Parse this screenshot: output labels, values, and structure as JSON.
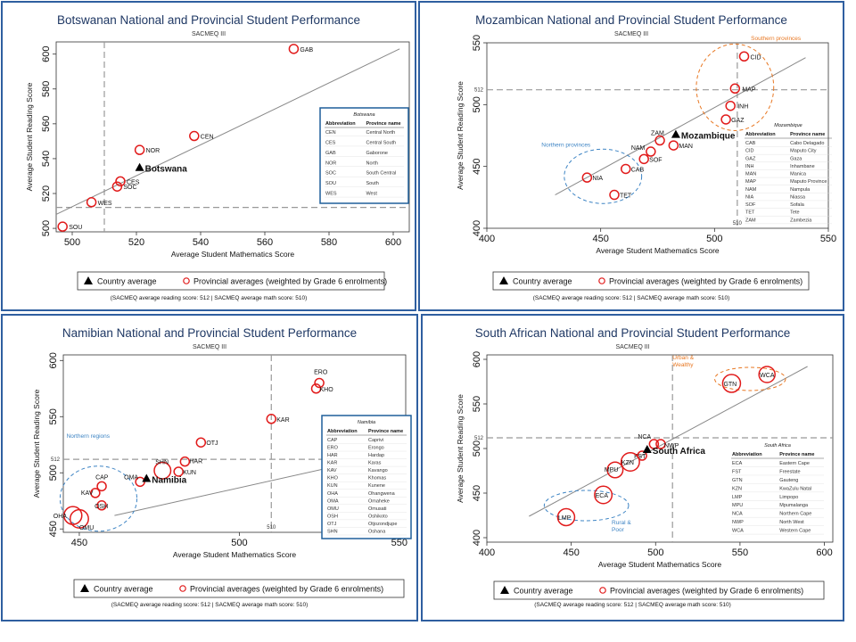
{
  "chart_data": [
    {
      "type": "scatter",
      "title": "Botswanan National and Provincial Student Performance",
      "subtitle": "SACMEQ III",
      "xlabel": "Average Student Mathematics Score",
      "ylabel": "Average Student Reading Score",
      "xlim": [
        495,
        605
      ],
      "ylim": [
        498,
        607
      ],
      "xticks": [
        500,
        520,
        540,
        560,
        580,
        600
      ],
      "yticks": [
        500,
        520,
        540,
        560,
        580,
        600
      ],
      "ref_x": 510,
      "ref_y": 512,
      "ref_x_label": "",
      "ref_y_label": "",
      "country": {
        "label": "Botswana",
        "x": 521,
        "y": 535
      },
      "provinces": [
        {
          "code": "GAB",
          "x": 569,
          "y": 603
        },
        {
          "code": "CEN",
          "x": 538,
          "y": 553
        },
        {
          "code": "NOR",
          "x": 521,
          "y": 545
        },
        {
          "code": "CES",
          "x": 515,
          "y": 527
        },
        {
          "code": "SOC",
          "x": 514,
          "y": 524
        },
        {
          "code": "WES",
          "x": 506,
          "y": 515
        },
        {
          "code": "SOU",
          "x": 497,
          "y": 501
        }
      ],
      "fit_line": [
        [
          495,
          508
        ],
        [
          602,
          603
        ]
      ],
      "legend_table": {
        "title": "Botswana",
        "headers": [
          "Abbreviation",
          "Province name"
        ],
        "rows": [
          [
            "CEN",
            "Central North"
          ],
          [
            "CES",
            "Central South"
          ],
          [
            "GAB",
            "Gaborone"
          ],
          [
            "NOR",
            "North"
          ],
          [
            "SOC",
            "South Central"
          ],
          [
            "SOU",
            "South"
          ],
          [
            "WES",
            "West"
          ]
        ]
      },
      "groups": [],
      "legend": {
        "country": "Country average",
        "provinces": "Provincial averages (weighted by Grade 6 enrolments)"
      },
      "footnote": "(SACMEQ average reading score: 512 | SACMEQ average math score: 510)"
    },
    {
      "type": "scatter",
      "title": "Mozambican National and Provincial Student Performance",
      "subtitle": "SACMEQ III",
      "xlabel": "Average Student Mathematics Score",
      "ylabel": "Average Student Reading Score",
      "xlim": [
        400,
        550
      ],
      "ylim": [
        400,
        550
      ],
      "xticks": [
        400,
        450,
        500,
        550
      ],
      "yticks": [
        400,
        450,
        500,
        550
      ],
      "ref_x": 510,
      "ref_y": 512,
      "ref_x_label": "510",
      "ref_y_label": "512",
      "country": {
        "label": "Mozambique",
        "x": 483,
        "y": 476
      },
      "provinces": [
        {
          "code": "CID",
          "x": 513,
          "y": 539
        },
        {
          "code": "MAP",
          "x": 509,
          "y": 513
        },
        {
          "code": "INH",
          "x": 507,
          "y": 499
        },
        {
          "code": "GAZ",
          "x": 505,
          "y": 488
        },
        {
          "code": "ZAM",
          "x": 476,
          "y": 471
        },
        {
          "code": "MAN",
          "x": 482,
          "y": 467
        },
        {
          "code": "NAM",
          "x": 472,
          "y": 462
        },
        {
          "code": "SOF",
          "x": 469,
          "y": 456
        },
        {
          "code": "CAB",
          "x": 461,
          "y": 448
        },
        {
          "code": "NIA",
          "x": 444,
          "y": 441
        },
        {
          "code": "TET",
          "x": 456,
          "y": 427
        }
      ],
      "fit_line": [
        [
          430,
          427
        ],
        [
          540,
          538
        ]
      ],
      "legend_table": {
        "title": "Mozambique",
        "headers": [
          "Abbreviation",
          "Province name"
        ],
        "rows": [
          [
            "CAB",
            "Cabo Delagado"
          ],
          [
            "CID",
            "Maputo City"
          ],
          [
            "GAZ",
            "Gaza"
          ],
          [
            "INH",
            "Inhambane"
          ],
          [
            "MAN",
            "Manica"
          ],
          [
            "MAP",
            "Maputo Province"
          ],
          [
            "NAM",
            "Nampula"
          ],
          [
            "NIA",
            "Niassa"
          ],
          [
            "SOF",
            "Sofala"
          ],
          [
            "TET",
            "Tete"
          ],
          [
            "ZAM",
            "Zambezia"
          ]
        ]
      },
      "groups": [
        {
          "label": "Southern provinces",
          "cx": 509,
          "cy": 514,
          "rx": 17,
          "ry": 35,
          "color": "#e87722",
          "lx": 516,
          "ly": 552
        },
        {
          "label": "Northern provinces",
          "cx": 451,
          "cy": 442,
          "rx": 17,
          "ry": 22,
          "color": "#3d84c4",
          "lx": 424,
          "ly": 466
        }
      ],
      "legend": {
        "country": "Country average",
        "provinces": "Provincial averages (weighted by Grade 6 enrolments)"
      },
      "footnote": "(SACMEQ average reading score: 512 | SACMEQ average math score: 510)"
    },
    {
      "type": "scatter",
      "title": "Namibian National and Provincial Student Performance",
      "subtitle": "SACMEQ III",
      "xlabel": "Average Student Mathematics Score",
      "ylabel": "Average Student Reading Score",
      "xlim": [
        445,
        552
      ],
      "ylim": [
        447,
        605
      ],
      "xticks": [
        450,
        500,
        550
      ],
      "yticks": [
        450,
        500,
        550,
        600
      ],
      "ref_x": 510,
      "ref_y": 512,
      "ref_x_label": "510",
      "ref_y_label": "512",
      "country": {
        "label": "Namibia",
        "x": 471,
        "y": 495
      },
      "provinces": [
        {
          "code": "ERO",
          "x": 525,
          "y": 580
        },
        {
          "code": "KHO",
          "x": 524,
          "y": 575
        },
        {
          "code": "KAR",
          "x": 510,
          "y": 548
        },
        {
          "code": "OTJ",
          "x": 488,
          "y": 527
        },
        {
          "code": "HAR",
          "x": 483,
          "y": 510
        },
        {
          "code": "SHN",
          "x": 476,
          "y": 502
        },
        {
          "code": "KUN",
          "x": 481,
          "y": 501
        },
        {
          "code": "OMA",
          "x": 469,
          "y": 492
        },
        {
          "code": "CAP",
          "x": 457,
          "y": 488
        },
        {
          "code": "KAV",
          "x": 455,
          "y": 482
        },
        {
          "code": "OSH",
          "x": 457,
          "y": 471
        },
        {
          "code": "OHA",
          "x": 448,
          "y": 462
        },
        {
          "code": "OMU",
          "x": 450,
          "y": 459
        }
      ],
      "fit_line": [
        [
          461,
          462
        ],
        [
          540,
          512
        ]
      ],
      "legend_table": {
        "title": "Namibia",
        "headers": [
          "Abbreviation",
          "Province name"
        ],
        "rows": [
          [
            "CAP",
            "Caprivi"
          ],
          [
            "ERO",
            "Erongo"
          ],
          [
            "HAR",
            "Hardap"
          ],
          [
            "KAR",
            "Karas"
          ],
          [
            "KAV",
            "Kavango"
          ],
          [
            "KHO",
            "Khomas"
          ],
          [
            "KUN",
            "Kunene"
          ],
          [
            "OHA",
            "Ohangwena"
          ],
          [
            "OMA",
            "Omaheke"
          ],
          [
            "OMU",
            "Omusati"
          ],
          [
            "OSH",
            "Oshikoto"
          ],
          [
            "OTJ",
            "Otjozondjupe"
          ],
          [
            "SHN",
            "Oshana"
          ]
        ]
      },
      "groups": [
        {
          "label": "Northern regions",
          "cx": 456,
          "cy": 477,
          "rx": 12,
          "ry": 29,
          "color": "#3d84c4",
          "lx": 446,
          "ly": 531
        }
      ],
      "legend": {
        "country": "Country average",
        "provinces": "Provincial averages (weighted by Grade 6 enrolments)"
      },
      "footnote": "(SACMEQ average reading score: 512 | SACMEQ average math score: 510)"
    },
    {
      "type": "scatter",
      "title": "South African National and Provincial Student Performance",
      "subtitle": "SACMEQ III",
      "xlabel": "Average Student Mathematics Score",
      "ylabel": "Average Student Reading Score",
      "xlim": [
        400,
        605
      ],
      "ylim": [
        395,
        605
      ],
      "xticks": [
        400,
        450,
        500,
        550,
        600
      ],
      "yticks": [
        400,
        450,
        500,
        550,
        600
      ],
      "ref_x": 510,
      "ref_y": 512,
      "ref_x_label": "",
      "ref_y_label": "512",
      "country": {
        "label": "South Africa",
        "x": 495,
        "y": 499
      },
      "provinces": [
        {
          "code": "WCA",
          "x": 566,
          "y": 583
        },
        {
          "code": "GTN",
          "x": 545,
          "y": 573
        },
        {
          "code": "NCA",
          "x": 499,
          "y": 505
        },
        {
          "code": "NWP",
          "x": 503,
          "y": 505
        },
        {
          "code": "FST",
          "x": 492,
          "y": 492
        },
        {
          "code": "KZN",
          "x": 485,
          "y": 485
        },
        {
          "code": "MPU",
          "x": 476,
          "y": 476
        },
        {
          "code": "ECA",
          "x": 469,
          "y": 448
        },
        {
          "code": "LMP",
          "x": 447,
          "y": 423
        }
      ],
      "fit_line": [
        [
          425,
          424
        ],
        [
          590,
          592
        ]
      ],
      "legend_table": {
        "title": "South Africa",
        "headers": [
          "Abbreviation",
          "Province name"
        ],
        "rows": [
          [
            "ECA",
            "Eastern Cape"
          ],
          [
            "FST",
            "Freestate"
          ],
          [
            "GTN",
            "Gauteng"
          ],
          [
            "KZN",
            "KwaZulu Natal"
          ],
          [
            "LMP",
            "Limpopo"
          ],
          [
            "MPU",
            "Mpumalanga"
          ],
          [
            "NCA",
            "Northern Cape"
          ],
          [
            "NWP",
            "North West"
          ],
          [
            "WCA",
            "Western Cape"
          ]
        ]
      },
      "groups": [
        {
          "label": "Urban & Wealthy",
          "cx": 556,
          "cy": 578,
          "rx": 21,
          "ry": 13,
          "color": "#e87722",
          "lx": 510,
          "ly": 600
        },
        {
          "label": "Rural & Poor",
          "cx": 459,
          "cy": 436,
          "rx": 25,
          "ry": 17,
          "color": "#3d84c4",
          "lx": 474,
          "ly": 415
        }
      ],
      "legend": {
        "country": "Country average",
        "provinces": "Provincial averages (weighted by Grade 6 enrolments)"
      },
      "footnote": "(SACMEQ average reading score: 512 | SACMEQ average math score: 510)"
    }
  ]
}
